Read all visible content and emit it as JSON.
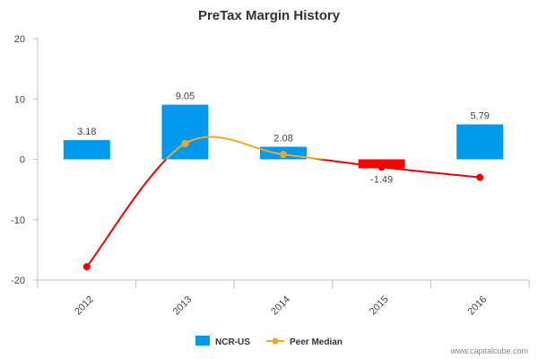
{
  "chart_data": {
    "type": "bar",
    "title": "PreTax Margin History",
    "categories": [
      "2012",
      "2013",
      "2014",
      "2015",
      "2016"
    ],
    "ylim": [
      -20,
      20
    ],
    "yticks": [
      20,
      10,
      0,
      -10,
      -20
    ],
    "series": [
      {
        "name": "NCR-US",
        "type": "bar",
        "values": [
          3.18,
          9.05,
          2.08,
          -1.49,
          5.79
        ],
        "data_labels": [
          "3.18",
          "9.05",
          "2.08",
          "-1.49",
          "5.79"
        ],
        "color": "#0099ee",
        "negative_color": "#ff0000"
      },
      {
        "name": "Peer Median",
        "type": "line",
        "values": [
          -17.8,
          2.6,
          0.8,
          -1.3,
          -3.0
        ],
        "color": "#f5a623",
        "negative_color": "#ee0000"
      }
    ],
    "grid": false,
    "legend_position": "bottom-center"
  },
  "source": "www.capitalcube.com"
}
